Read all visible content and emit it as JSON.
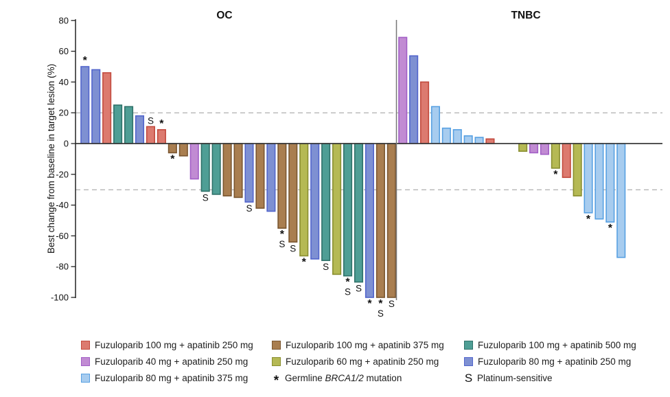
{
  "chart_data": {
    "type": "bar",
    "subtype": "waterfall",
    "title": "",
    "xlabel": "",
    "ylabel": "Best change from baseline in target lesion (%)",
    "ylim": [
      -100,
      80
    ],
    "yticks": [
      80,
      60,
      40,
      20,
      0,
      -20,
      -40,
      -60,
      -80,
      -100
    ],
    "reference_lines": [
      20,
      -30
    ],
    "grid": "off",
    "legend_position": "bottom",
    "marker_meanings": {
      "*": "Germline BRCA1/2 mutation",
      "S": "Platinum-sensitive"
    },
    "series_labels": {
      "f100a250": "Fuzuloparib 100 mg + apatinib 250 mg",
      "f100a375": "Fuzuloparib 100 mg + apatinib 375 mg",
      "f100a500": "Fuzuloparib 100 mg + apatinib 500 mg",
      "f40a250": "Fuzuloparib 40 mg + apatinib 250 mg",
      "f60a250": "Fuzuloparib 60 mg + apatinib 250 mg",
      "f80a250": "Fuzuloparib 80 mg + apatinib 250 mg",
      "f80a375": "Fuzuloparib 80 mg + apatinib 375 mg"
    },
    "series_colors": {
      "f100a250": {
        "fill": "#DC7A6F",
        "stroke": "#C24A3E"
      },
      "f100a375": {
        "fill": "#A97E50",
        "stroke": "#7A5630"
      },
      "f100a500": {
        "fill": "#4F9E95",
        "stroke": "#2F7169"
      },
      "f40a250": {
        "fill": "#C18BD3",
        "stroke": "#A25FC6"
      },
      "f60a250": {
        "fill": "#B5B954",
        "stroke": "#898E2F"
      },
      "f80a250": {
        "fill": "#7E90D2",
        "stroke": "#5265CC"
      },
      "f80a375": {
        "fill": "#A7CCEF",
        "stroke": "#57A0E2"
      }
    },
    "panels": [
      {
        "title": "OC",
        "bars": [
          {
            "value": 50,
            "series": "f80a250",
            "marker": "*"
          },
          {
            "value": 48,
            "series": "f80a250"
          },
          {
            "value": 46,
            "series": "f100a250"
          },
          {
            "value": 25,
            "series": "f100a500"
          },
          {
            "value": 24,
            "series": "f100a500"
          },
          {
            "value": 18,
            "series": "f80a250"
          },
          {
            "value": 11,
            "series": "f100a250",
            "marker": "S"
          },
          {
            "value": 9,
            "series": "f100a250",
            "marker": "*"
          },
          {
            "value": -6,
            "series": "f100a375",
            "marker": "*"
          },
          {
            "value": -8,
            "series": "f100a375"
          },
          {
            "value": -23,
            "series": "f40a250"
          },
          {
            "value": -31,
            "series": "f100a500",
            "marker": "S"
          },
          {
            "value": -33,
            "series": "f100a500"
          },
          {
            "value": -34,
            "series": "f100a375"
          },
          {
            "value": -35,
            "series": "f100a375"
          },
          {
            "value": -38,
            "series": "f80a250",
            "marker": "S"
          },
          {
            "value": -42,
            "series": "f100a375"
          },
          {
            "value": -44,
            "series": "f80a250"
          },
          {
            "value": -55,
            "series": "f100a375",
            "marker": "*S"
          },
          {
            "value": -64,
            "series": "f100a375",
            "marker": "S"
          },
          {
            "value": -73,
            "series": "f60a250",
            "marker": "*"
          },
          {
            "value": -75,
            "series": "f80a250"
          },
          {
            "value": -76,
            "series": "f100a500",
            "marker": "S"
          },
          {
            "value": -85,
            "series": "f60a250"
          },
          {
            "value": -86,
            "series": "f100a500",
            "marker": "*S"
          },
          {
            "value": -90,
            "series": "f100a500",
            "marker": "S"
          },
          {
            "value": -100,
            "series": "f80a250",
            "marker": "*"
          },
          {
            "value": -100,
            "series": "f100a375",
            "marker": "*S"
          },
          {
            "value": -100,
            "series": "f100a375",
            "marker": "S"
          }
        ]
      },
      {
        "title": "TNBC",
        "bars": [
          {
            "value": 69,
            "series": "f40a250"
          },
          {
            "value": 57,
            "series": "f80a250"
          },
          {
            "value": 40,
            "series": "f100a250"
          },
          {
            "value": 24,
            "series": "f80a375"
          },
          {
            "value": 10,
            "series": "f80a375"
          },
          {
            "value": 9,
            "series": "f80a375"
          },
          {
            "value": 5,
            "series": "f80a375"
          },
          {
            "value": 4,
            "series": "f80a375"
          },
          {
            "value": 3,
            "series": "f100a250"
          },
          {
            "value": 0,
            "series": null
          },
          {
            "value": 0,
            "series": null
          },
          {
            "value": -5,
            "series": "f60a250"
          },
          {
            "value": -6,
            "series": "f40a250"
          },
          {
            "value": -7,
            "series": "f40a250"
          },
          {
            "value": -16,
            "series": "f60a250",
            "marker": "*"
          },
          {
            "value": -22,
            "series": "f100a250"
          },
          {
            "value": -34,
            "series": "f60a250"
          },
          {
            "value": -45,
            "series": "f80a375",
            "marker": "*"
          },
          {
            "value": -49,
            "series": "f80a375"
          },
          {
            "value": -51,
            "series": "f80a375",
            "marker": "*"
          },
          {
            "value": -74,
            "series": "f80a375"
          }
        ]
      }
    ]
  },
  "legend": {
    "columns": [
      {
        "items": [
          {
            "type": "swatch",
            "series": "f100a250",
            "label": "Fuzuloparib 100 mg + apatinib 250 mg"
          },
          {
            "type": "swatch",
            "series": "f40a250",
            "label": "Fuzuloparib 40 mg + apatinib 250 mg"
          },
          {
            "type": "swatch",
            "series": "f80a375",
            "label": "Fuzuloparib 80 mg + apatinib 375 mg"
          }
        ]
      },
      {
        "items": [
          {
            "type": "swatch",
            "series": "f100a375",
            "label": "Fuzuloparib 100 mg + apatinib 375 mg"
          },
          {
            "type": "swatch",
            "series": "f60a250",
            "label": "Fuzuloparib 60 mg + apatinib 250 mg"
          },
          {
            "type": "symbol",
            "symbol": "*",
            "symbol_name": "brca-asterisk",
            "label_prefix": "Germline ",
            "label_italic": "BRCA1/2",
            "label_suffix": " mutation"
          }
        ]
      },
      {
        "items": [
          {
            "type": "swatch",
            "series": "f100a500",
            "label": "Fuzuloparib 100 mg + apatinib 500 mg"
          },
          {
            "type": "swatch",
            "series": "f80a250",
            "label": "Fuzuloparib 80 mg + apatinib 250 mg"
          },
          {
            "type": "symbol",
            "symbol": "S",
            "symbol_name": "platinum-sensitive-s",
            "label_prefix": "Platinum-sensitive",
            "label_italic": "",
            "label_suffix": ""
          }
        ]
      }
    ]
  }
}
